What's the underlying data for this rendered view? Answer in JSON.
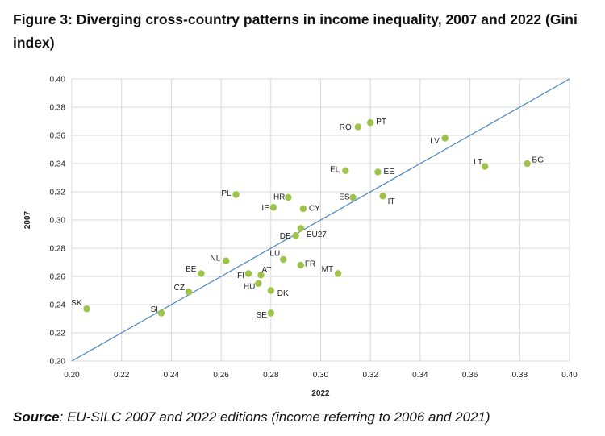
{
  "figure": {
    "title": "Figure 3: Diverging cross-country patterns in income inequality, 2007 and 2022 (Gini index)",
    "source_label": "Source",
    "source_text": ": EU-SILC 2007 and 2022 editions (income referring to 2006 and 2021)"
  },
  "chart_data": {
    "type": "scatter",
    "xlabel": "2022",
    "ylabel": "2007",
    "xlim": [
      0.2,
      0.4
    ],
    "ylim": [
      0.2,
      0.4
    ],
    "xticks": [
      "0.20",
      "0.22",
      "0.24",
      "0.26",
      "0.28",
      "0.30",
      "0.32",
      "0.34",
      "0.36",
      "0.38",
      "0.40"
    ],
    "yticks": [
      "0.20",
      "0.22",
      "0.24",
      "0.26",
      "0.28",
      "0.30",
      "0.32",
      "0.34",
      "0.36",
      "0.38",
      "0.40"
    ],
    "grid": true,
    "reference_line": "y = x",
    "colors": {
      "point": "#9dc34a",
      "line": "#4a86c0",
      "grid": "#d9d9d9"
    },
    "points": [
      {
        "label": "SK",
        "x": 0.206,
        "y": 0.237
      },
      {
        "label": "SI",
        "x": 0.236,
        "y": 0.234
      },
      {
        "label": "CZ",
        "x": 0.247,
        "y": 0.249
      },
      {
        "label": "BE",
        "x": 0.252,
        "y": 0.262
      },
      {
        "label": "NL",
        "x": 0.262,
        "y": 0.271
      },
      {
        "label": "PL",
        "x": 0.266,
        "y": 0.318
      },
      {
        "label": "FI",
        "x": 0.271,
        "y": 0.262
      },
      {
        "label": "HU",
        "x": 0.275,
        "y": 0.255
      },
      {
        "label": "AT",
        "x": 0.276,
        "y": 0.261
      },
      {
        "label": "SE",
        "x": 0.28,
        "y": 0.234
      },
      {
        "label": "DK",
        "x": 0.28,
        "y": 0.25
      },
      {
        "label": "IE",
        "x": 0.281,
        "y": 0.309
      },
      {
        "label": "LU",
        "x": 0.285,
        "y": 0.272
      },
      {
        "label": "HR",
        "x": 0.287,
        "y": 0.316
      },
      {
        "label": "DE",
        "x": 0.29,
        "y": 0.289
      },
      {
        "label": "FR",
        "x": 0.292,
        "y": 0.268
      },
      {
        "label": "EU27",
        "x": 0.292,
        "y": 0.294
      },
      {
        "label": "CY",
        "x": 0.293,
        "y": 0.308
      },
      {
        "label": "MT",
        "x": 0.307,
        "y": 0.262
      },
      {
        "label": "EL",
        "x": 0.31,
        "y": 0.335
      },
      {
        "label": "ES",
        "x": 0.313,
        "y": 0.316
      },
      {
        "label": "RO",
        "x": 0.315,
        "y": 0.366
      },
      {
        "label": "PT",
        "x": 0.32,
        "y": 0.369
      },
      {
        "label": "EE",
        "x": 0.323,
        "y": 0.334
      },
      {
        "label": "IT",
        "x": 0.325,
        "y": 0.317
      },
      {
        "label": "LV",
        "x": 0.35,
        "y": 0.358
      },
      {
        "label": "LT",
        "x": 0.366,
        "y": 0.338
      },
      {
        "label": "BG",
        "x": 0.383,
        "y": 0.34
      }
    ]
  }
}
